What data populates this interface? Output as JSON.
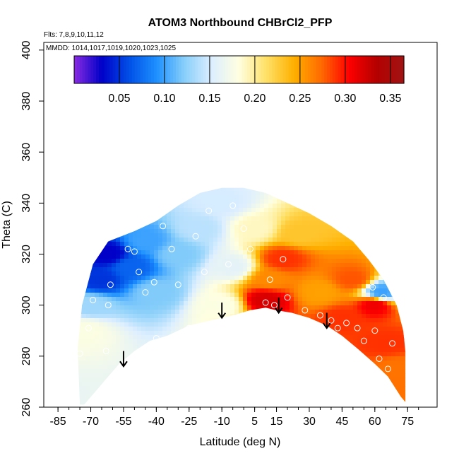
{
  "chart_data": {
    "type": "heatmap",
    "title": "ATOM3 Northbound CHBrCl2_PFP",
    "info_lines": [
      "Flts: 7,8,9,10,11,12",
      "MMDD: 1014,1017,1019,1020,1023,1025"
    ],
    "xlabel": "Latitude (deg N)",
    "ylabel": "Theta (C)",
    "xlim": [
      -85,
      85
    ],
    "ylim": [
      260,
      405
    ],
    "x_ticks": [
      -85,
      -70,
      -55,
      -40,
      -25,
      -10,
      5,
      15,
      30,
      45,
      60,
      75
    ],
    "y_ticks": [
      260,
      280,
      300,
      320,
      340,
      360,
      380,
      400
    ],
    "colorbar": {
      "range": [
        0.0,
        0.365
      ],
      "tick_values": [
        0.05,
        0.1,
        0.15,
        0.2,
        0.25,
        0.3,
        0.35
      ],
      "tick_labels": [
        "0.05",
        "0.10",
        "0.15",
        "0.20",
        "0.25",
        "0.30",
        "0.35"
      ],
      "colors": [
        "#8a2be2",
        "#0000c8",
        "#0050e6",
        "#1e90ff",
        "#87cefa",
        "#dceeff",
        "#ffffe0",
        "#ffe066",
        "#ffb000",
        "#ff6a00",
        "#ff0000",
        "#b40000",
        "#a01414"
      ]
    },
    "arrows": [
      {
        "lat": -55,
        "theta_top": 282,
        "theta_bottom": 276
      },
      {
        "lat": -10,
        "theta_top": 301,
        "theta_bottom": 295
      },
      {
        "lat": 16,
        "theta_top": 303,
        "theta_bottom": 297
      },
      {
        "lat": 38,
        "theta_top": 297,
        "theta_bottom": 291
      }
    ],
    "field_samples": [
      {
        "lat": -73,
        "theta": 290,
        "value": 0.18
      },
      {
        "lat": -70,
        "theta": 300,
        "value": 0.13
      },
      {
        "lat": -66,
        "theta": 310,
        "value": 0.05
      },
      {
        "lat": -62,
        "theta": 320,
        "value": 0.03
      },
      {
        "lat": -52,
        "theta": 315,
        "value": 0.07
      },
      {
        "lat": -45,
        "theta": 325,
        "value": 0.1
      },
      {
        "lat": -40,
        "theta": 305,
        "value": 0.12
      },
      {
        "lat": -30,
        "theta": 320,
        "value": 0.12
      },
      {
        "lat": -20,
        "theta": 330,
        "value": 0.14
      },
      {
        "lat": -10,
        "theta": 340,
        "value": 0.15
      },
      {
        "lat": -5,
        "theta": 315,
        "value": 0.16
      },
      {
        "lat": -10,
        "theta": 300,
        "value": 0.18
      },
      {
        "lat": 5,
        "theta": 330,
        "value": 0.19
      },
      {
        "lat": 10,
        "theta": 302,
        "value": 0.32
      },
      {
        "lat": 12,
        "theta": 310,
        "value": 0.26
      },
      {
        "lat": 18,
        "theta": 318,
        "value": 0.29
      },
      {
        "lat": 25,
        "theta": 328,
        "value": 0.23
      },
      {
        "lat": 35,
        "theta": 305,
        "value": 0.25
      },
      {
        "lat": 45,
        "theta": 295,
        "value": 0.29
      },
      {
        "lat": 50,
        "theta": 310,
        "value": 0.28
      },
      {
        "lat": 60,
        "theta": 300,
        "value": 0.31
      },
      {
        "lat": 63,
        "theta": 305,
        "value": 0.1
      },
      {
        "lat": 65,
        "theta": 285,
        "value": 0.29
      },
      {
        "lat": 70,
        "theta": 275,
        "value": 0.27
      }
    ],
    "sample_points": [
      {
        "lat": -75,
        "theta": 281
      },
      {
        "lat": -71,
        "theta": 291
      },
      {
        "lat": -69,
        "theta": 302
      },
      {
        "lat": -63,
        "theta": 282
      },
      {
        "lat": -62,
        "theta": 300
      },
      {
        "lat": -61,
        "theta": 308
      },
      {
        "lat": -53,
        "theta": 322
      },
      {
        "lat": -50,
        "theta": 321
      },
      {
        "lat": -48,
        "theta": 313
      },
      {
        "lat": -45,
        "theta": 305
      },
      {
        "lat": -41,
        "theta": 309
      },
      {
        "lat": -40,
        "theta": 287
      },
      {
        "lat": -37,
        "theta": 331
      },
      {
        "lat": -33,
        "theta": 322
      },
      {
        "lat": -30,
        "theta": 308
      },
      {
        "lat": -25,
        "theta": 291
      },
      {
        "lat": -22,
        "theta": 327
      },
      {
        "lat": -18,
        "theta": 313
      },
      {
        "lat": -16,
        "theta": 337
      },
      {
        "lat": -7,
        "theta": 316
      },
      {
        "lat": -5,
        "theta": 339
      },
      {
        "lat": 0,
        "theta": 330
      },
      {
        "lat": 3,
        "theta": 322
      },
      {
        "lat": 10,
        "theta": 301
      },
      {
        "lat": 12,
        "theta": 310
      },
      {
        "lat": 14,
        "theta": 300
      },
      {
        "lat": 18,
        "theta": 318
      },
      {
        "lat": 20,
        "theta": 303
      },
      {
        "lat": 28,
        "theta": 298
      },
      {
        "lat": 35,
        "theta": 296
      },
      {
        "lat": 40,
        "theta": 294
      },
      {
        "lat": 43,
        "theta": 291
      },
      {
        "lat": 47,
        "theta": 293
      },
      {
        "lat": 52,
        "theta": 291
      },
      {
        "lat": 55,
        "theta": 286
      },
      {
        "lat": 59,
        "theta": 307
      },
      {
        "lat": 60,
        "theta": 290
      },
      {
        "lat": 62,
        "theta": 279
      },
      {
        "lat": 64,
        "theta": 303
      },
      {
        "lat": 66,
        "theta": 275
      },
      {
        "lat": 68,
        "theta": 285
      }
    ],
    "grid": false,
    "legend": "top"
  }
}
